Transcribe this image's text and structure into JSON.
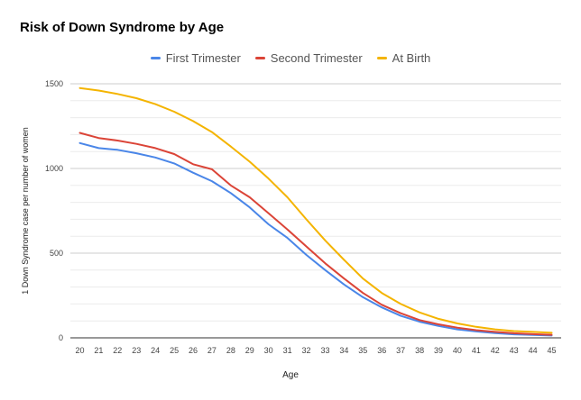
{
  "chart_data": {
    "type": "line",
    "title": "Risk of Down Syndrome by Age",
    "xlabel": "Age",
    "ylabel": "1 Down Syndrome case per number of women",
    "ylim": [
      0,
      1500
    ],
    "yticks": [
      "0",
      "500",
      "1000",
      "1500"
    ],
    "grid": true,
    "legend_position": "top",
    "x": [
      20,
      21,
      22,
      23,
      24,
      25,
      26,
      27,
      28,
      29,
      30,
      31,
      32,
      33,
      34,
      35,
      36,
      37,
      38,
      39,
      40,
      41,
      42,
      43,
      44,
      45
    ],
    "series": [
      {
        "name": "First Trimester",
        "color": "#4a86e8",
        "values": [
          1150,
          1120,
          1110,
          1090,
          1065,
          1030,
          975,
          925,
          855,
          770,
          670,
          590,
          490,
          400,
          315,
          240,
          180,
          130,
          95,
          70,
          50,
          38,
          28,
          21,
          17,
          14
        ]
      },
      {
        "name": "Second Trimester",
        "color": "#db4437",
        "values": [
          1210,
          1180,
          1165,
          1145,
          1120,
          1085,
          1025,
          995,
          900,
          830,
          735,
          640,
          540,
          440,
          350,
          265,
          195,
          145,
          105,
          80,
          60,
          45,
          35,
          27,
          22,
          18
        ]
      },
      {
        "name": "At Birth",
        "color": "#f4b400",
        "values": [
          1475,
          1460,
          1440,
          1415,
          1380,
          1335,
          1280,
          1215,
          1130,
          1040,
          940,
          830,
          700,
          575,
          460,
          350,
          265,
          200,
          150,
          112,
          85,
          65,
          50,
          40,
          35,
          30
        ]
      }
    ]
  }
}
